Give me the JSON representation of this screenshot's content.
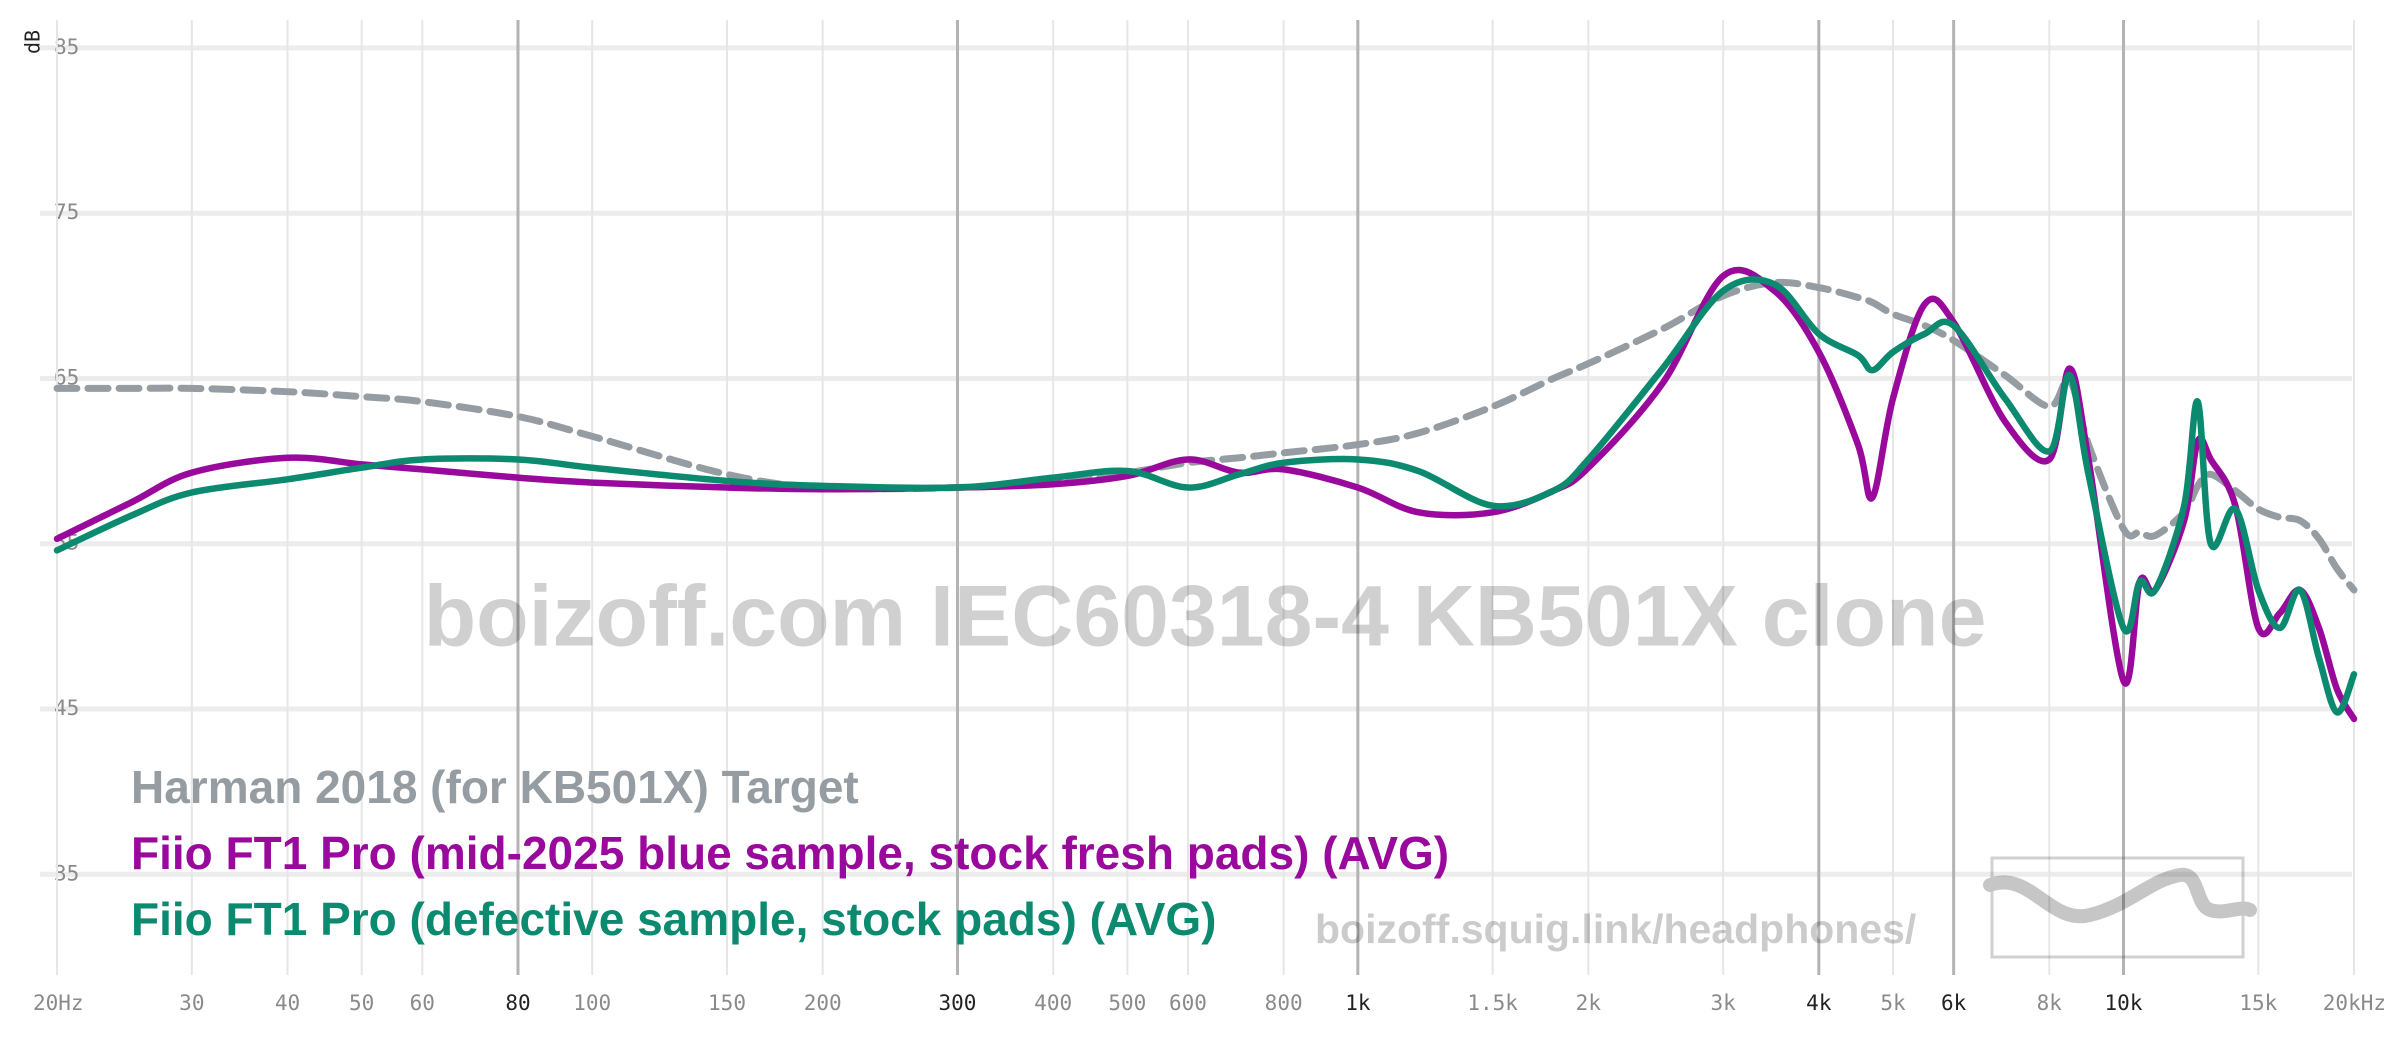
{
  "chart_data": {
    "type": "line",
    "y_label": "dB",
    "annotations": [
      "boizoff.com IEC60318-4 KB501X clone",
      "boizoff.squig.link/headphones/"
    ],
    "x": [
      20,
      25,
      30,
      40,
      50,
      60,
      80,
      100,
      150,
      200,
      300,
      400,
      500,
      600,
      700,
      800,
      1000,
      1200,
      1500,
      1800,
      2000,
      2500,
      3000,
      3500,
      4000,
      4500,
      4700,
      5000,
      5500,
      6000,
      7000,
      8000,
      8500,
      9000,
      10000,
      10500,
      11000,
      12000,
      12500,
      13000,
      14000,
      15000,
      16000,
      17000,
      18000,
      19000,
      20000
    ],
    "series": [
      {
        "name": "Harman 2018 (for KB501X) Target",
        "color": "#959da3",
        "dashed": true,
        "values": [
          64.4,
          64.4,
          64.4,
          64.2,
          63.9,
          63.6,
          62.7,
          61.5,
          59.2,
          58.4,
          58.4,
          58.8,
          59.3,
          59.9,
          60.2,
          60.5,
          61.0,
          61.7,
          63.3,
          65.0,
          65.9,
          68.0,
          70.0,
          70.8,
          70.5,
          69.9,
          69.6,
          68.9,
          68.2,
          67.3,
          65.2,
          63.3,
          64.9,
          61.0,
          55.9,
          55.7,
          55.5,
          56.9,
          58.5,
          59.2,
          58.2,
          57.1,
          56.6,
          56.4,
          55.3,
          53.5,
          52.2
        ]
      },
      {
        "name": "Fiio FT1 Pro (mid-2025 blue sample, stock fresh pads) (AVG)",
        "color": "#990a9c",
        "dashed": false,
        "values": [
          55.3,
          57.5,
          59.3,
          60.2,
          59.8,
          59.5,
          59.0,
          58.7,
          58.4,
          58.3,
          58.4,
          58.6,
          59.1,
          60.1,
          59.3,
          59.5,
          58.4,
          56.9,
          56.9,
          58.2,
          59.6,
          64.7,
          71.2,
          70.3,
          66.6,
          61.0,
          57.8,
          63.8,
          69.5,
          68.4,
          62.4,
          60.1,
          65.6,
          60.1,
          46.7,
          52.7,
          52.2,
          56.4,
          61.2,
          60.1,
          57.3,
          49.9,
          50.8,
          52.2,
          49.9,
          46.2,
          44.4
        ]
      },
      {
        "name": "Fiio FT1 Pro (defective sample, stock pads) (AVG)",
        "color": "#0b8a70",
        "dashed": false,
        "values": [
          54.6,
          56.7,
          58.1,
          58.9,
          59.6,
          60.1,
          60.1,
          59.6,
          58.8,
          58.5,
          58.4,
          59.0,
          59.4,
          58.4,
          59.2,
          59.9,
          60.1,
          59.4,
          57.3,
          58.2,
          60.1,
          65.6,
          70.3,
          70.7,
          67.7,
          66.4,
          65.5,
          66.6,
          67.7,
          68.2,
          63.8,
          60.6,
          65.2,
          59.2,
          49.9,
          52.7,
          52.2,
          57.3,
          63.6,
          55.0,
          57.1,
          52.2,
          49.9,
          52.2,
          48.1,
          44.8,
          47.1
        ]
      }
    ],
    "log_x": true,
    "xlim": [
      20,
      20000
    ],
    "xticks": [
      {
        "value": 20,
        "label": "20Hz"
      },
      30,
      40,
      50,
      60,
      80,
      100,
      150,
      200,
      300,
      400,
      500,
      600,
      800,
      {
        "value": 1000,
        "label": "1k"
      },
      {
        "value": 1500,
        "label": "1.5k"
      },
      {
        "value": 2000,
        "label": "2k"
      },
      {
        "value": 3000,
        "label": "3k"
      },
      {
        "value": 4000,
        "label": "4k"
      },
      {
        "value": 5000,
        "label": "5k"
      },
      {
        "value": 6000,
        "label": "6k"
      },
      {
        "value": 8000,
        "label": "8k"
      },
      {
        "value": 10000,
        "label": "10k"
      },
      {
        "value": 15000,
        "label": "15k"
      },
      {
        "value": 20000,
        "label": "20kHz"
      }
    ],
    "emphasized_xticks": [
      80,
      300,
      1000,
      4000,
      6000,
      10000
    ],
    "ylim": [
      28.3,
      87.9
    ],
    "yticks": [
      35,
      45,
      55,
      65,
      75,
      85
    ],
    "grid": true,
    "legend_position": "lower left"
  }
}
